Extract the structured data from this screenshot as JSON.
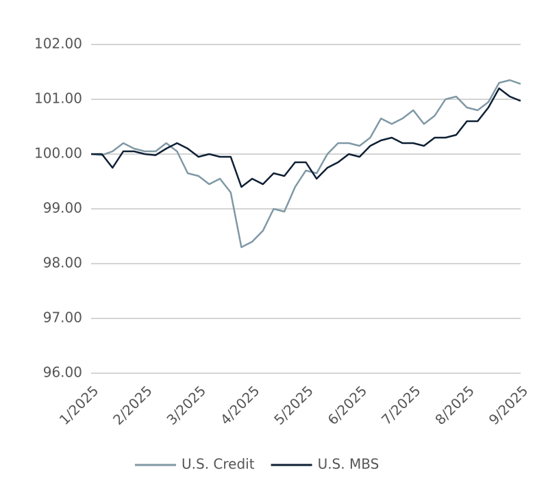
{
  "chart_data": {
    "type": "line",
    "categories": [
      "1/2025",
      null,
      null,
      null,
      null,
      "2/2025",
      null,
      null,
      null,
      null,
      "3/2025",
      null,
      null,
      null,
      null,
      "4/2025",
      null,
      null,
      null,
      null,
      "5/2025",
      null,
      null,
      null,
      null,
      "6/2025",
      null,
      null,
      null,
      null,
      "7/2025",
      null,
      null,
      null,
      null,
      "8/2025",
      null,
      null,
      null,
      null,
      "9/2025"
    ],
    "series": [
      {
        "name": "U.S. Credit",
        "color": "#7f98a5",
        "values": [
          100.0,
          99.98,
          100.05,
          100.2,
          100.1,
          100.05,
          100.05,
          100.2,
          100.05,
          99.65,
          99.6,
          99.45,
          99.55,
          99.3,
          98.3,
          98.4,
          98.6,
          99.0,
          98.95,
          99.4,
          99.7,
          99.65,
          100.0,
          100.2,
          100.2,
          100.15,
          100.3,
          100.65,
          100.55,
          100.65,
          100.8,
          100.55,
          100.7,
          101.0,
          101.05,
          100.85,
          100.8,
          100.95,
          101.3,
          101.35,
          101.28
        ]
      },
      {
        "name": "U.S. MBS",
        "color": "#0d1f33",
        "values": [
          100.0,
          100.0,
          99.75,
          100.05,
          100.05,
          100.0,
          99.98,
          100.1,
          100.2,
          100.1,
          99.95,
          100.0,
          99.95,
          99.95,
          99.4,
          99.55,
          99.45,
          99.65,
          99.6,
          99.85,
          99.85,
          99.55,
          99.75,
          99.85,
          100.0,
          99.95,
          100.15,
          100.25,
          100.3,
          100.2,
          100.2,
          100.15,
          100.3,
          100.3,
          100.35,
          100.6,
          100.6,
          100.85,
          101.2,
          101.05,
          100.97
        ]
      }
    ],
    "ylim": [
      96,
      102
    ],
    "yticks": [
      {
        "value": 96,
        "label": "96.00"
      },
      {
        "value": 97,
        "label": "97.00"
      },
      {
        "value": 98,
        "label": "98.00"
      },
      {
        "value": 99,
        "label": "99.00"
      },
      {
        "value": 100,
        "label": "100.00"
      },
      {
        "value": 101,
        "label": "101.00"
      },
      {
        "value": 102,
        "label": "102.00"
      }
    ],
    "grid": true,
    "legend": "bottom"
  }
}
